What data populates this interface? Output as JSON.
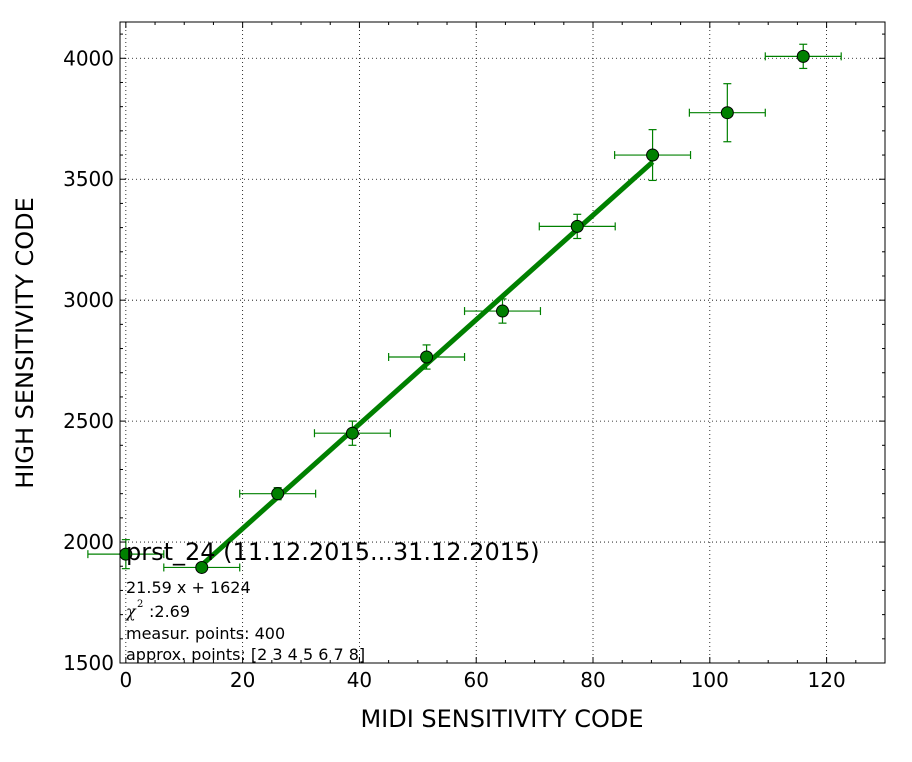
{
  "chart_data": {
    "type": "scatter",
    "xlabel": "MIDI SENSITIVITY CODE",
    "ylabel": "HIGH SENSITIVITY CODE",
    "xlim": [
      -1,
      130
    ],
    "ylim": [
      1500,
      4150
    ],
    "x_ticks": [
      0,
      20,
      40,
      60,
      80,
      100,
      120
    ],
    "y_ticks": [
      1500,
      2000,
      2500,
      3000,
      3500,
      4000
    ],
    "grid": true,
    "grid_style": "dotted",
    "color": "#008000",
    "points": [
      {
        "x": 0,
        "y": 1950,
        "xerr": 6.5,
        "yerr": 60
      },
      {
        "x": 13,
        "y": 1895,
        "xerr": 6.5,
        "yerr": 15
      },
      {
        "x": 26,
        "y": 2200,
        "xerr": 6.5,
        "yerr": 25
      },
      {
        "x": 38.8,
        "y": 2450,
        "xerr": 6.5,
        "yerr": 50
      },
      {
        "x": 51.5,
        "y": 2765,
        "xerr": 6.5,
        "yerr": 50
      },
      {
        "x": 64.5,
        "y": 2955,
        "xerr": 6.5,
        "yerr": 50
      },
      {
        "x": 77.3,
        "y": 3305,
        "xerr": 6.5,
        "yerr": 50
      },
      {
        "x": 90.2,
        "y": 3600,
        "xerr": 6.5,
        "yerr": 105
      },
      {
        "x": 103,
        "y": 3775,
        "xerr": 6.5,
        "yerr": 120
      },
      {
        "x": 116,
        "y": 4008,
        "xerr": 6.5,
        "yerr": 50
      }
    ],
    "fit": {
      "slope": 21.59,
      "intercept": 1624,
      "x_from": 13,
      "x_to": 90.2
    },
    "annotations": {
      "title": "prst_24 (11.12.2015...31.12.2015)",
      "equation": "21.59 x + 1624",
      "chi_symbol": "χ",
      "chi_sup": "2",
      "chi_value": ":2.69",
      "measur_points": "measur. points: 400",
      "approx_points": "approx. points: [2 3 4 5 6 7 8]"
    }
  }
}
